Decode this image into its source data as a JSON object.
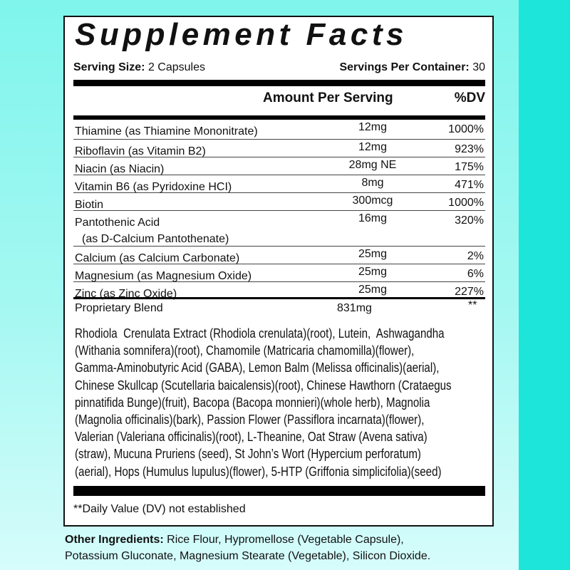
{
  "colors": {
    "background_top": "#7ff5ec",
    "background_bottom": "#d6fcfb",
    "side_strip": "#1de5d9"
  },
  "title": "Supplement Facts",
  "serving_size": {
    "label": "Serving Size:",
    "value": "2 Capsules"
  },
  "servings_per_container": {
    "label": "Servings Per Container:",
    "value": "30"
  },
  "columns": {
    "amount": "Amount Per Serving",
    "dv": "%DV"
  },
  "rows": [
    {
      "name": "Thiamine (as Thiamine Mononitrate)",
      "amount": "12mg",
      "dv": "1000%"
    },
    {
      "name": "Riboflavin (as Vitamin B2)",
      "amount": "12mg",
      "dv": "923%"
    },
    {
      "name": "Niacin (as Niacin)",
      "amount": "28mg NE",
      "dv": "175%"
    },
    {
      "name": "Vitamin B6 (as Pyridoxine HCI)",
      "amount": "8mg",
      "dv": "471%"
    },
    {
      "name": "Biotin",
      "amount": "300mcg",
      "dv": "1000%"
    },
    {
      "name": "Pantothenic Acid",
      "name2": "(as D-Calcium Pantothenate)",
      "amount": "16mg",
      "dv": "320%"
    },
    {
      "name": "Calcium (as Calcium Carbonate)",
      "amount": "25mg",
      "dv": "2%"
    },
    {
      "name": "Magnesium (as Magnesium Oxide)",
      "amount": "25mg",
      "dv": "6%"
    },
    {
      "name": "Zinc (as Zinc Oxide)",
      "amount": "25mg",
      "dv": "227%"
    }
  ],
  "blend": {
    "name": "Proprietary Blend",
    "amount": "831mg",
    "dv": "**",
    "lines": [
      "Rhodiola  Crenulata Extract (Rhodiola crenulata)(root), Lutein,  Ashwagandha",
      "(Withania somnifera)(root), Chamomile (Matricaria chamomilla)(flower),",
      "Gamma-Aminobutyric Acid (GABA), Lemon Balm (Melissa officinalis)(aerial),",
      "Chinese Skullcap (Scutellaria baicalensis)(root), Chinese Hawthorn (Crataegus",
      "pinnatifida Bunge)(fruit), Bacopa (Bacopa monnieri)(whole herb), Magnolia",
      "(Magnolia officinalis)(bark), Passion Flower (Passiflora incarnata)(flower),",
      "Valerian (Valeriana officinalis)(root), L-Theanine, Oat Straw (Avena sativa)",
      "(straw), Mucuna Pruriens (seed), St John’s Wort (Hypercium perforatum)",
      "(aerial), Hops (Humulus lupulus)(flower), 5-HTP (Griffonia simplicifolia)(seed)"
    ]
  },
  "footnote": "**Daily Value (DV) not established",
  "other_ingredients": {
    "label": "Other Ingredients:",
    "line1": "Rice Flour, Hypromellose (Vegetable Capsule),",
    "line2": "Potassium Gluconate, Magnesium Stearate (Vegetable), Silicon Dioxide."
  }
}
